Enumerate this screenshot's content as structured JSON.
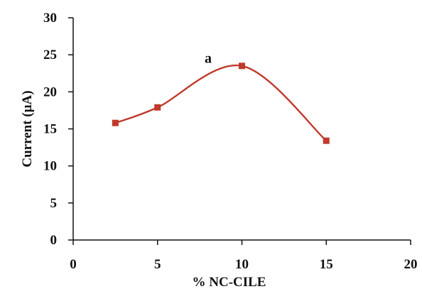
{
  "chart_data": {
    "type": "line",
    "smooth": true,
    "x": [
      2.5,
      5,
      10,
      15
    ],
    "series": [
      {
        "values": [
          15.8,
          17.9,
          23.5,
          13.4
        ],
        "color": "#c0392b"
      }
    ],
    "xlim": [
      0,
      20
    ],
    "ylim": [
      0,
      30
    ],
    "xticks": [
      0,
      5,
      10,
      15,
      20
    ],
    "yticks": [
      0,
      5,
      10,
      15,
      20,
      25,
      30
    ],
    "xtick_labels": [
      "0",
      "5",
      "10",
      "15",
      "20"
    ],
    "ytick_labels": [
      "0",
      "5",
      "10",
      "15",
      "20",
      "25",
      "30"
    ],
    "xlabel": "% NC-CILE",
    "ylabel": "Current (µA)",
    "grid": false,
    "marker": "square",
    "annotations": [
      {
        "text": "a",
        "x": 8.0,
        "y": 24.5
      }
    ]
  }
}
